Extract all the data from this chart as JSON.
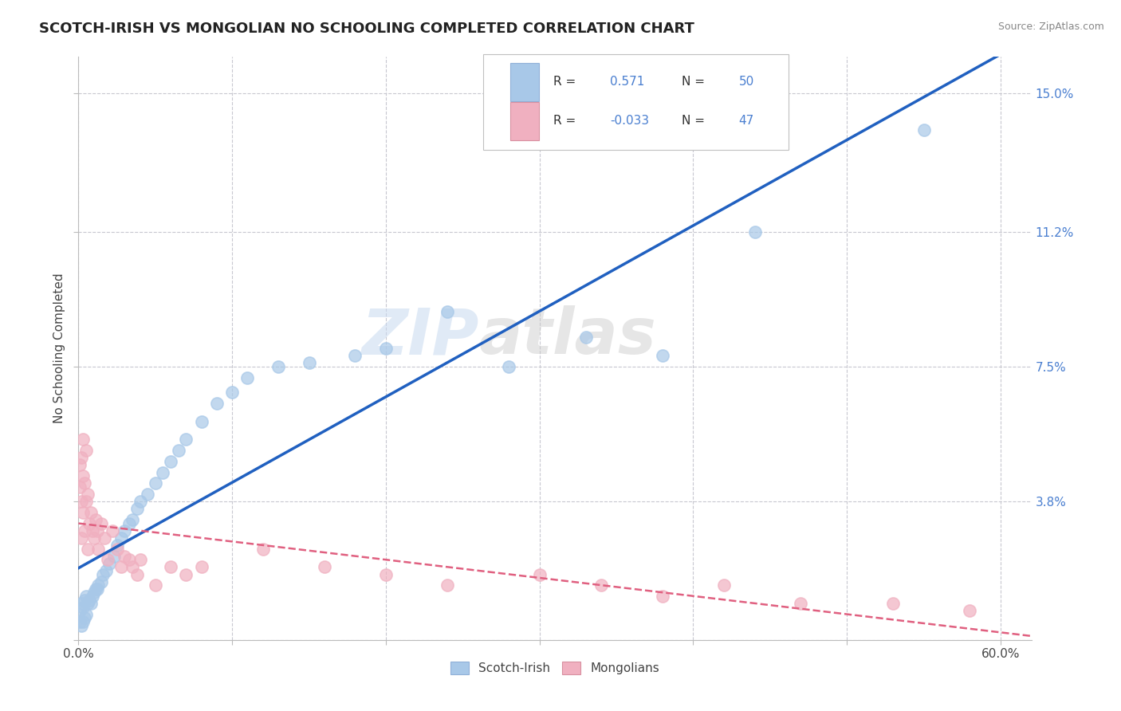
{
  "title": "SCOTCH-IRISH VS MONGOLIAN NO SCHOOLING COMPLETED CORRELATION CHART",
  "source": "Source: ZipAtlas.com",
  "ylabel": "No Schooling Completed",
  "x_ticks": [
    0.0,
    0.1,
    0.2,
    0.3,
    0.4,
    0.5,
    0.6
  ],
  "x_tick_labels": [
    "0.0%",
    "",
    "",
    "",
    "",
    "",
    "60.0%"
  ],
  "y_tick_labels": [
    "",
    "3.8%",
    "7.5%",
    "11.2%",
    "15.0%"
  ],
  "y_ticks": [
    0.0,
    0.038,
    0.075,
    0.112,
    0.15
  ],
  "xlim": [
    0.0,
    0.62
  ],
  "ylim": [
    0.0,
    0.16
  ],
  "scotch_irish_color": "#a8c8e8",
  "mongolian_color": "#f0b0c0",
  "scotch_irish_line_color": "#2060c0",
  "mongolian_line_color": "#e06080",
  "background_color": "#ffffff",
  "grid_color": "#c8c8d0",
  "legend_label1": "Scotch-Irish",
  "legend_label2": "Mongolians",
  "R_scotch": 0.571,
  "N_scotch": 50,
  "R_mongol": -0.033,
  "N_mongol": 47,
  "scotch_irish_x": [
    0.001,
    0.001,
    0.002,
    0.002,
    0.003,
    0.003,
    0.004,
    0.004,
    0.005,
    0.005,
    0.006,
    0.007,
    0.008,
    0.009,
    0.01,
    0.011,
    0.012,
    0.013,
    0.015,
    0.016,
    0.018,
    0.02,
    0.023,
    0.025,
    0.028,
    0.03,
    0.033,
    0.035,
    0.038,
    0.04,
    0.045,
    0.05,
    0.055,
    0.06,
    0.065,
    0.07,
    0.08,
    0.09,
    0.1,
    0.11,
    0.13,
    0.15,
    0.18,
    0.2,
    0.24,
    0.28,
    0.33,
    0.38,
    0.44,
    0.55
  ],
  "scotch_irish_y": [
    0.005,
    0.008,
    0.004,
    0.01,
    0.005,
    0.009,
    0.006,
    0.011,
    0.007,
    0.012,
    0.01,
    0.011,
    0.01,
    0.012,
    0.013,
    0.014,
    0.014,
    0.015,
    0.016,
    0.018,
    0.019,
    0.021,
    0.023,
    0.026,
    0.028,
    0.03,
    0.032,
    0.033,
    0.036,
    0.038,
    0.04,
    0.043,
    0.046,
    0.049,
    0.052,
    0.055,
    0.06,
    0.065,
    0.068,
    0.072,
    0.075,
    0.076,
    0.078,
    0.08,
    0.09,
    0.075,
    0.083,
    0.078,
    0.112,
    0.14
  ],
  "mongolian_x": [
    0.001,
    0.001,
    0.002,
    0.002,
    0.002,
    0.003,
    0.003,
    0.003,
    0.004,
    0.004,
    0.005,
    0.005,
    0.006,
    0.006,
    0.007,
    0.008,
    0.009,
    0.01,
    0.011,
    0.012,
    0.013,
    0.015,
    0.017,
    0.019,
    0.022,
    0.025,
    0.028,
    0.03,
    0.033,
    0.035,
    0.038,
    0.04,
    0.05,
    0.06,
    0.07,
    0.08,
    0.12,
    0.16,
    0.2,
    0.24,
    0.3,
    0.34,
    0.38,
    0.42,
    0.47,
    0.53,
    0.58
  ],
  "mongolian_y": [
    0.042,
    0.048,
    0.028,
    0.038,
    0.05,
    0.035,
    0.045,
    0.055,
    0.03,
    0.043,
    0.038,
    0.052,
    0.025,
    0.04,
    0.032,
    0.035,
    0.03,
    0.028,
    0.033,
    0.03,
    0.025,
    0.032,
    0.028,
    0.022,
    0.03,
    0.025,
    0.02,
    0.023,
    0.022,
    0.02,
    0.018,
    0.022,
    0.015,
    0.02,
    0.018,
    0.02,
    0.025,
    0.02,
    0.018,
    0.015,
    0.018,
    0.015,
    0.012,
    0.015,
    0.01,
    0.01,
    0.008
  ],
  "watermark_zip": "ZIP",
  "watermark_atlas": "atlas"
}
